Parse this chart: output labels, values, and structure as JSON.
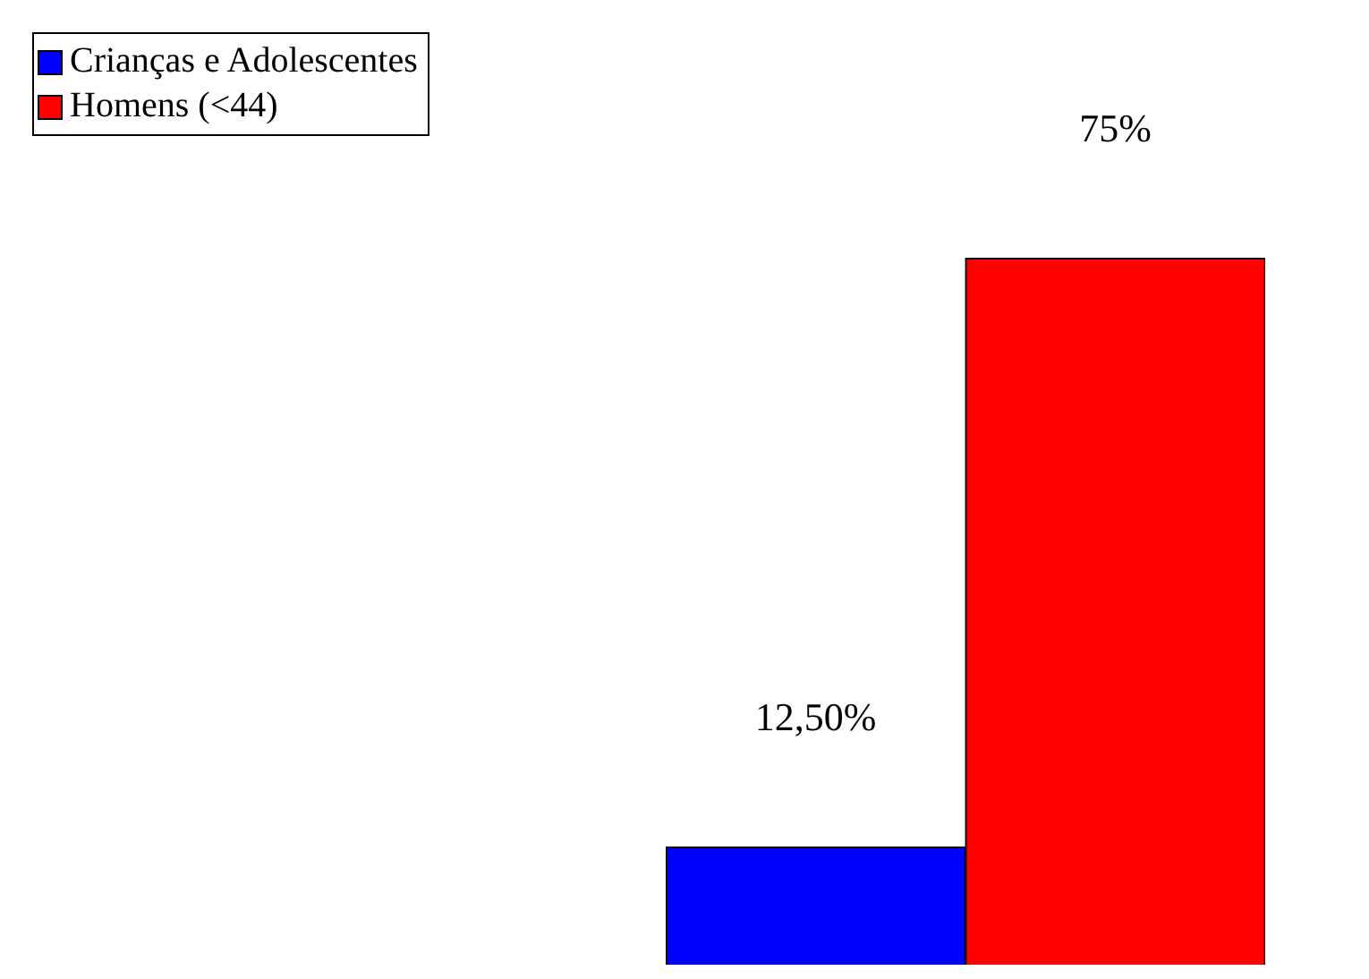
{
  "chart_data": {
    "type": "bar",
    "categories": [
      null
    ],
    "series": [
      {
        "name": "Crianças e Adolescentes",
        "color": "#0000ff",
        "values": [
          12.5
        ],
        "value_labels": [
          "12,50%"
        ]
      },
      {
        "name": "Homens (<44)",
        "color": "#ff0000",
        "values": [
          75
        ],
        "value_labels": [
          "75%"
        ]
      }
    ],
    "legend": "top left",
    "tick_labels": false
  }
}
